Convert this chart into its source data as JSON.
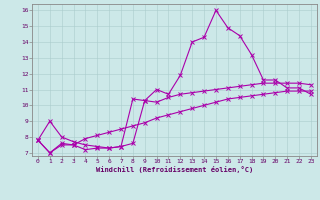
{
  "bg_color": "#cce8e8",
  "line_color": "#aa00aa",
  "xlabel": "Windchill (Refroidissement éolien,°C)",
  "xlim": [
    -0.5,
    23.5
  ],
  "ylim": [
    6.8,
    16.4
  ],
  "yticks": [
    7,
    8,
    9,
    10,
    11,
    12,
    13,
    14,
    15,
    16
  ],
  "xticks": [
    0,
    1,
    2,
    3,
    4,
    5,
    6,
    7,
    8,
    9,
    10,
    11,
    12,
    13,
    14,
    15,
    16,
    17,
    18,
    19,
    20,
    21,
    22,
    23
  ],
  "line1_x": [
    0,
    1,
    2,
    3,
    4,
    5,
    6,
    7,
    8,
    9,
    10,
    11,
    12,
    13,
    14,
    15,
    16,
    17,
    18,
    19,
    20,
    21,
    22,
    23
  ],
  "line1_y": [
    7.8,
    7.0,
    7.6,
    7.5,
    7.2,
    7.3,
    7.3,
    7.4,
    7.6,
    10.3,
    11.0,
    10.7,
    11.9,
    14.0,
    14.3,
    16.0,
    14.9,
    14.4,
    13.2,
    11.6,
    11.6,
    11.1,
    11.1,
    10.7
  ],
  "line2_x": [
    0,
    1,
    2,
    3,
    4,
    5,
    6,
    7,
    8,
    9,
    10,
    11,
    12,
    13,
    14,
    15,
    16,
    17,
    18,
    19,
    20,
    21,
    22,
    23
  ],
  "line2_y": [
    7.8,
    9.0,
    8.0,
    7.7,
    7.5,
    7.4,
    7.3,
    7.4,
    10.4,
    10.3,
    10.2,
    10.5,
    10.7,
    10.8,
    10.9,
    11.0,
    11.1,
    11.2,
    11.3,
    11.4,
    11.4,
    11.4,
    11.4,
    11.3
  ],
  "line3_x": [
    0,
    1,
    2,
    3,
    4,
    5,
    6,
    7,
    8,
    9,
    10,
    11,
    12,
    13,
    14,
    15,
    16,
    17,
    18,
    19,
    20,
    21,
    22,
    23
  ],
  "line3_y": [
    7.8,
    7.0,
    7.5,
    7.5,
    7.9,
    8.1,
    8.3,
    8.5,
    8.7,
    8.9,
    9.2,
    9.4,
    9.6,
    9.8,
    10.0,
    10.2,
    10.4,
    10.5,
    10.6,
    10.7,
    10.8,
    10.9,
    10.9,
    10.9
  ],
  "tick_fontsize": 4.5,
  "xlabel_fontsize": 5.0,
  "spine_color": "#888888",
  "grid_color": "#aacccc",
  "tick_color": "#660066",
  "marker": "x",
  "markersize": 2.5,
  "linewidth": 0.8
}
